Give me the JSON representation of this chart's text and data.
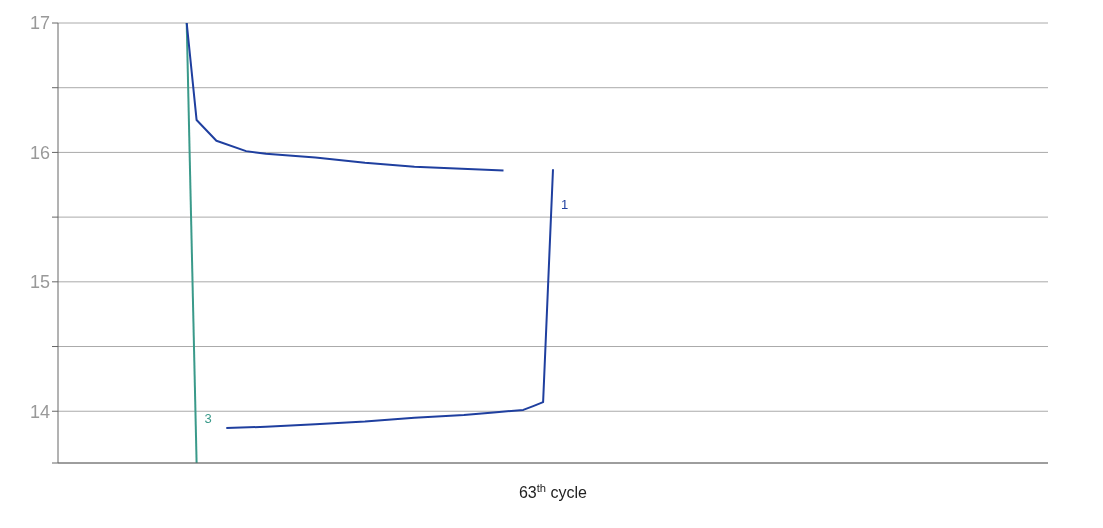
{
  "chart_data": {
    "type": "line",
    "xlabel": "63$^{th}$ cycle",
    "ylim": [
      13.6,
      17.0
    ],
    "yticks": [
      {
        "value": 13.6,
        "label": null
      },
      14,
      {
        "value": 14.5,
        "label": null
      },
      15,
      {
        "value": 15.5,
        "label": null
      },
      16,
      {
        "value": 16.5,
        "label": null
      },
      17
    ],
    "tick_labels": "y",
    "grid": "y",
    "marker": "none",
    "line_style": "solid",
    "categories": [
      null,
      null,
      null,
      null,
      null,
      null,
      null,
      null,
      null,
      null,
      null,
      null,
      null,
      null,
      null,
      null,
      null,
      null,
      null,
      null,
      null,
      null,
      null,
      null,
      null,
      null,
      null,
      null,
      null,
      null,
      null,
      null,
      null,
      null,
      null,
      null,
      null,
      null,
      null,
      null,
      null,
      null,
      null,
      null,
      null,
      null,
      null,
      null,
      null,
      null,
      null,
      null,
      null,
      null,
      null,
      null,
      null,
      null,
      null,
      null,
      null,
      null,
      null,
      null,
      null,
      null,
      null,
      null,
      null,
      null,
      null,
      null,
      null,
      null,
      null,
      null,
      null,
      null,
      null,
      null,
      null,
      null,
      null,
      null,
      null,
      null,
      null,
      null,
      null,
      null,
      null,
      null,
      null,
      null,
      null,
      null,
      null,
      null,
      null,
      null,
      null
    ],
    "series": [
      {
        "name": "3",
        "color": "#3a9a8a",
        "values": [
          null,
          null,
          null,
          null,
          null,
          null,
          null,
          null,
          null,
          null,
          null,
          null,
          null,
          17.0,
          13.6,
          null,
          null,
          null,
          null,
          null,
          null,
          null,
          null,
          null,
          null,
          null,
          null,
          null,
          null,
          null,
          null,
          null,
          null,
          null,
          null,
          null,
          null,
          null,
          null,
          null,
          null,
          null,
          null,
          null,
          null,
          null,
          null,
          null,
          null,
          null,
          null,
          null,
          null,
          null,
          null,
          null,
          null,
          null,
          null,
          null,
          null,
          null,
          null,
          null,
          null,
          null,
          null,
          null,
          null,
          null,
          null,
          null,
          null,
          null,
          null,
          null,
          null,
          null,
          null,
          null,
          null,
          null,
          null,
          null,
          null,
          null,
          null,
          null,
          null,
          null,
          null,
          null,
          null,
          null,
          null,
          null,
          null,
          null,
          null,
          null,
          null
        ]
      },
      {
        "color": "#1f3f9f",
        "values": [
          null,
          null,
          null,
          null,
          null,
          null,
          null,
          null,
          null,
          null,
          null,
          null,
          null,
          17.0,
          16.25,
          null,
          16.09,
          null,
          null,
          16.01,
          null,
          15.99,
          null,
          null,
          null,
          null,
          15.96,
          null,
          null,
          null,
          null,
          15.92,
          null,
          null,
          null,
          null,
          15.89,
          null,
          null,
          null,
          null,
          null,
          null,
          null,
          null,
          15.86,
          null,
          null,
          null,
          null,
          null,
          null,
          null,
          null,
          null,
          null,
          null,
          null,
          null,
          null,
          null,
          null,
          null,
          null,
          null,
          null,
          null,
          null,
          null,
          null,
          null,
          null,
          null,
          null,
          null,
          null,
          null,
          null,
          null,
          null,
          null,
          null,
          null,
          null,
          null,
          null,
          null,
          null,
          null,
          null,
          null,
          null,
          null,
          null,
          null,
          null,
          null,
          null,
          null,
          null,
          null
        ]
      },
      {
        "name": "1",
        "color": "#1f3f9f",
        "values": [
          null,
          null,
          null,
          null,
          null,
          null,
          null,
          null,
          null,
          null,
          null,
          null,
          null,
          null,
          null,
          null,
          null,
          13.87,
          null,
          null,
          null,
          13.88,
          null,
          null,
          null,
          null,
          13.9,
          null,
          null,
          null,
          null,
          13.92,
          null,
          null,
          null,
          null,
          13.95,
          null,
          null,
          null,
          null,
          13.97,
          null,
          null,
          13.99,
          null,
          null,
          14.01,
          14.04,
          14.07,
          15.87,
          null,
          null,
          null,
          null,
          null,
          null,
          null,
          null,
          null,
          null,
          null,
          null,
          null,
          null,
          null,
          null,
          null,
          null,
          null,
          null,
          null,
          null,
          null,
          null,
          null,
          null,
          null,
          null,
          null,
          null,
          null,
          null,
          null,
          null,
          null,
          null,
          null,
          null,
          null,
          null,
          null,
          null,
          null,
          null,
          null,
          null,
          null,
          null,
          null,
          null
        ]
      }
    ]
  }
}
